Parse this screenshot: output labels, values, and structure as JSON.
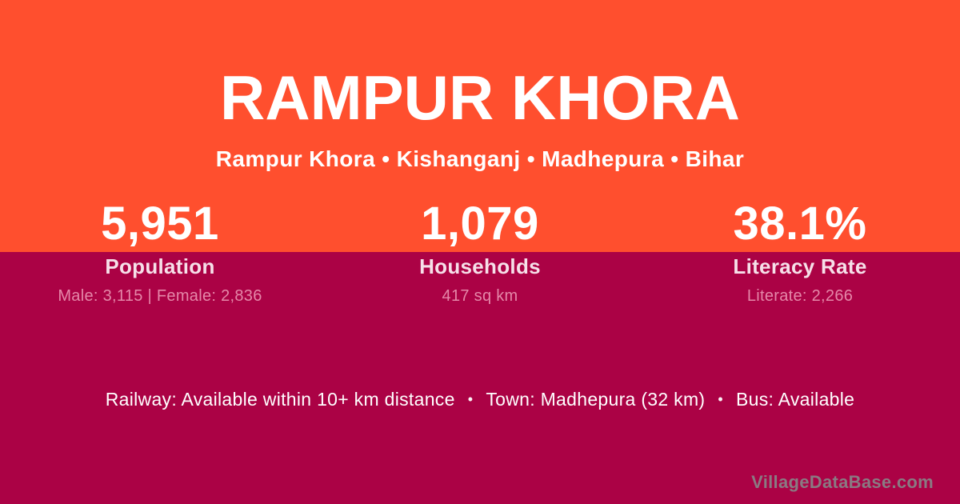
{
  "page": {
    "title": "RAMPUR KHORA",
    "breadcrumb": "Rampur Khora • Kishanganj • Madhepura • Bihar"
  },
  "stats": {
    "population": {
      "value": "5,951",
      "label": "Population",
      "detail": "Male: 3,115 | Female: 2,836"
    },
    "households": {
      "value": "1,079",
      "label": "Households",
      "detail": "417 sq km"
    },
    "literacy": {
      "value": "38.1%",
      "label": "Literacy Rate",
      "detail": "Literate: 2,266"
    }
  },
  "footer": {
    "items": [
      "Railway: Available within 10+ km distance",
      "Town: Madhepura (32 km)",
      "Bus: Available"
    ],
    "separator": "•"
  },
  "watermark": "VillageDataBase.com",
  "colors": {
    "top_band": "#FF4F2E",
    "bottom_band": "#AB0245",
    "primary_text": "#FFFFFF",
    "stat_label_text": "#F6E0E9",
    "stat_detail_text": "#E588A9",
    "watermark_text": "#8A7A82"
  }
}
